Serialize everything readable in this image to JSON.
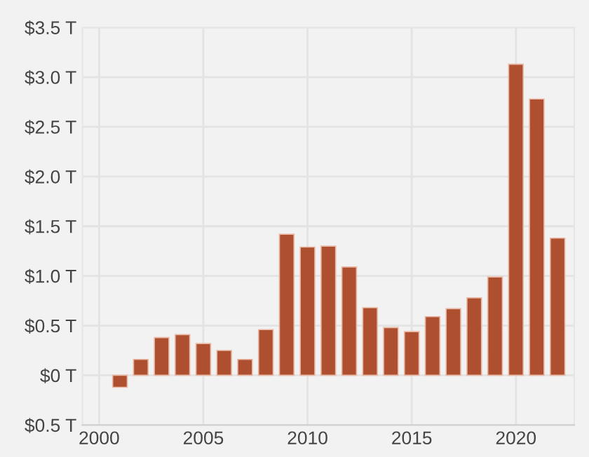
{
  "chart_data": {
    "type": "bar",
    "x": [
      2001,
      2002,
      2003,
      2004,
      2005,
      2006,
      2007,
      2008,
      2009,
      2010,
      2011,
      2012,
      2013,
      2014,
      2015,
      2016,
      2017,
      2018,
      2019,
      2020,
      2021,
      2022
    ],
    "values": [
      -0.12,
      0.16,
      0.38,
      0.41,
      0.32,
      0.25,
      0.16,
      0.46,
      1.42,
      1.29,
      1.3,
      1.09,
      0.68,
      0.48,
      0.44,
      0.59,
      0.67,
      0.78,
      0.99,
      3.13,
      2.78,
      1.38
    ],
    "color": "#ae4f2f",
    "xlim": [
      1999.2,
      2022.8
    ],
    "xticks": [
      2000,
      2005,
      2010,
      2015,
      2020
    ],
    "ylim": [
      -0.5,
      3.5
    ],
    "yticks": [
      {
        "value": -0.5,
        "label": "$0.5 T"
      },
      {
        "value": 0,
        "label": "$0 T"
      },
      {
        "value": 0.5,
        "label": "$0.5 T"
      },
      {
        "value": 1.0,
        "label": "$1.0 T"
      },
      {
        "value": 1.5,
        "label": "$1.5 T"
      },
      {
        "value": 2.0,
        "label": "$2.0 T"
      },
      {
        "value": 2.5,
        "label": "$2.5 T"
      },
      {
        "value": 3.0,
        "label": "$3.0 T"
      },
      {
        "value": 3.5,
        "label": "$3.5 T"
      }
    ],
    "grid": true
  }
}
